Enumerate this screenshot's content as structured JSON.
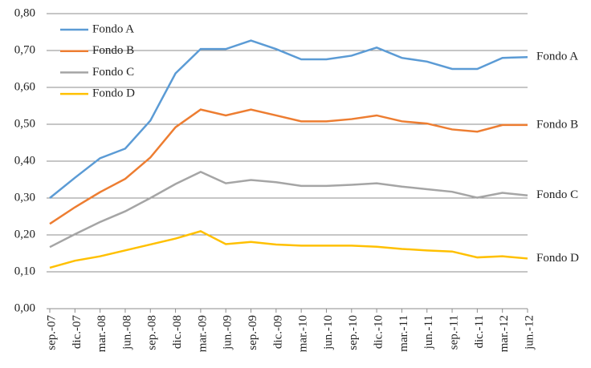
{
  "chart_data": {
    "type": "line",
    "categories": [
      "sep.-07",
      "dic.-07",
      "mar.-08",
      "jun.-08",
      "sep.-08",
      "dic.-08",
      "mar.-09",
      "jun.-09",
      "sep.-09",
      "dic.-09",
      "mar.-10",
      "jun.-10",
      "sep.-10",
      "dic.-10",
      "mar.-11",
      "jun.-11",
      "sep.-11",
      "dic.-11",
      "mar.-12",
      "jun.-12"
    ],
    "series": [
      {
        "name": "Fondo A",
        "color": "#5b9bd5",
        "values": [
          0.3,
          0.355,
          0.408,
          0.434,
          0.51,
          0.638,
          0.704,
          0.704,
          0.727,
          0.704,
          0.676,
          0.676,
          0.686,
          0.708,
          0.68,
          0.67,
          0.65,
          0.65,
          0.68,
          0.682
        ]
      },
      {
        "name": "Fondo B",
        "color": "#ed7d31",
        "values": [
          0.23,
          0.275,
          0.316,
          0.352,
          0.41,
          0.492,
          0.54,
          0.524,
          0.54,
          0.524,
          0.508,
          0.508,
          0.514,
          0.524,
          0.508,
          0.502,
          0.486,
          0.48,
          0.498,
          0.498
        ]
      },
      {
        "name": "Fondo C",
        "color": "#a5a5a5",
        "values": [
          0.167,
          0.202,
          0.235,
          0.264,
          0.3,
          0.338,
          0.371,
          0.34,
          0.349,
          0.343,
          0.333,
          0.333,
          0.336,
          0.34,
          0.331,
          0.324,
          0.317,
          0.301,
          0.314,
          0.307
        ]
      },
      {
        "name": "Fondo D",
        "color": "#ffc000",
        "values": [
          0.111,
          0.13,
          0.142,
          0.158,
          0.174,
          0.19,
          0.21,
          0.175,
          0.181,
          0.174,
          0.171,
          0.171,
          0.171,
          0.168,
          0.162,
          0.158,
          0.155,
          0.139,
          0.142,
          0.136
        ]
      }
    ],
    "ylim": [
      0,
      0.8
    ],
    "yticks": [
      {
        "value": 0,
        "label": "0,00"
      },
      {
        "value": 0.1,
        "label": "0,10"
      },
      {
        "value": 0.2,
        "label": "0,20"
      },
      {
        "value": 0.3,
        "label": "0,30"
      },
      {
        "value": 0.4,
        "label": "0,40"
      },
      {
        "value": 0.5,
        "label": "0,50"
      },
      {
        "value": 0.6,
        "label": "0,60"
      },
      {
        "value": 0.7,
        "label": "0,70"
      },
      {
        "value": 0.8,
        "label": "0,80"
      }
    ],
    "grid": true,
    "legend": "top-left"
  }
}
